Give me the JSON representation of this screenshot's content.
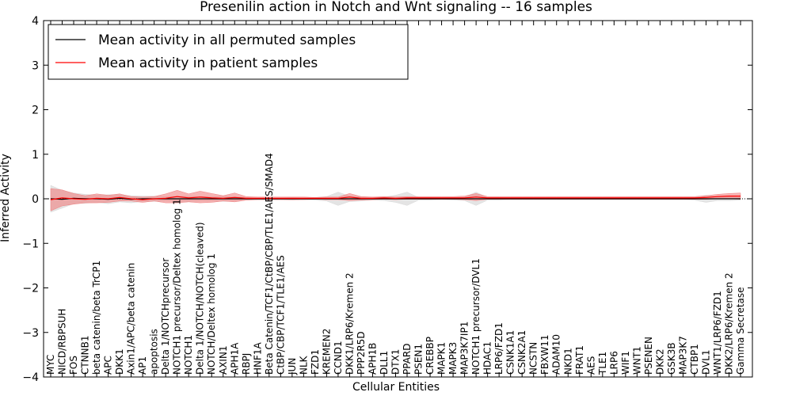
{
  "chart_data": {
    "type": "line",
    "title": "Presenilin action in Notch and Wnt signaling -- 16 samples",
    "xlabel": "Cellular Entities",
    "ylabel": "Inferred Activity",
    "ylim": [
      -4,
      4
    ],
    "yticks": [
      "−4",
      "−3",
      "−2",
      "−1",
      "0",
      "1",
      "2",
      "3",
      "4"
    ],
    "legend_position": "top-left",
    "categories": [
      "MYC",
      "NICD/RBPSUH",
      "FOS",
      "CTNNB1",
      "beta catenin/beta TrCP1",
      "APC",
      "DKK1",
      "Axin1/APC/beta catenin",
      "AP1",
      "apoptosis",
      "Delta 1/NOTCHprecursor",
      "NOTCH1 precursor/Deltex homolog 1",
      "NOTCH1",
      "Delta 1/NOTCH/NOTCH(cleaved)",
      "NOTCH/Deltex homolog 1",
      "AXIN1",
      "APH1A",
      "RBPJ",
      "HNF1A",
      "Beta Catenin/TCF1/CtBP/CBP/TLE1/AES/SMAD4",
      "CtBP/CBP/TCF1/TLE1/AES",
      "JUN",
      "NLK",
      "FZD1",
      "KREMEN2",
      "CCND1",
      "DKK1/LRP6/Kremen 2",
      "PPP2R5D",
      "APH1B",
      "DLL1",
      "DTX1",
      "PPARD",
      "PSEN1",
      "CREBBP",
      "MAPK1",
      "MAPK3",
      "MAP3K7IP1",
      "NOTCH1 precursor/DVL1",
      "HDAC1",
      "LRP6/FZD1",
      "CSNK1A1",
      "CSNK2A1",
      "NCSTN",
      "FBXW11",
      "ADAM10",
      "NKD1",
      "FRAT1",
      "AES",
      "TLE1",
      "LRP6",
      "WIF1",
      "WNT1",
      "PSENEN",
      "DKK2",
      "GSK3B",
      "MAP3K7",
      "CTBP1",
      "DVL1",
      "WNT1/LRP6/FZD1",
      "DKK2/LRP6/Kremen 2",
      "Gamma Secretase"
    ],
    "series": [
      {
        "name": "Mean activity in all permuted samples",
        "color": "#000000",
        "values": [
          0,
          -0.01,
          0.01,
          0,
          0,
          -0.01,
          0.01,
          -0.01,
          0,
          0,
          0,
          0,
          0,
          0,
          0,
          0,
          0,
          0,
          0,
          0,
          0,
          0,
          0,
          0,
          0,
          0,
          0,
          0,
          0,
          0,
          0,
          0,
          0,
          0,
          0,
          0,
          0,
          0,
          0,
          0,
          0,
          0,
          0,
          0,
          0,
          0,
          0,
          0,
          0,
          0,
          0,
          0,
          0,
          0,
          0,
          0,
          0,
          0,
          0,
          0,
          0
        ],
        "band_spread": [
          0.3,
          0.2,
          0.12,
          0.1,
          0.08,
          0.1,
          0.08,
          0.08,
          0.06,
          0.06,
          0.05,
          0.06,
          0.06,
          0.05,
          0.05,
          0.06,
          0.05,
          0.03,
          0.02,
          0.02,
          0.02,
          0.03,
          0.02,
          0.03,
          0.05,
          0.15,
          0.06,
          0.05,
          0.03,
          0.04,
          0.08,
          0.15,
          0.03,
          0.03,
          0.02,
          0.03,
          0.04,
          0.15,
          0.03,
          0.03,
          0.02,
          0.02,
          0.02,
          0.02,
          0.02,
          0.02,
          0.02,
          0.02,
          0.02,
          0.02,
          0.02,
          0.02,
          0.02,
          0.02,
          0.02,
          0.02,
          0.03,
          0.08,
          0.04,
          0.04,
          0.03
        ],
        "band_color": "#d8d8d8"
      },
      {
        "name": "Mean activity in patient samples",
        "color": "#ff0000",
        "values": [
          -0.02,
          0.02,
          0.0,
          -0.01,
          0.01,
          0.0,
          0.03,
          0.0,
          -0.02,
          0.0,
          0.01,
          0.05,
          0.02,
          0.04,
          0.02,
          0.01,
          0.03,
          0.01,
          0.01,
          0.01,
          0.01,
          0.01,
          0.01,
          0.01,
          0.01,
          0.01,
          0.04,
          0.01,
          0.01,
          0.02,
          0.01,
          0.02,
          0.02,
          0.02,
          0.02,
          0.02,
          0.02,
          0.04,
          0.02,
          0.02,
          0.02,
          0.02,
          0.02,
          0.02,
          0.02,
          0.02,
          0.02,
          0.02,
          0.02,
          0.02,
          0.02,
          0.02,
          0.02,
          0.02,
          0.02,
          0.02,
          0.02,
          0.03,
          0.05,
          0.06,
          0.06
        ],
        "band_spread": [
          0.25,
          0.18,
          0.12,
          0.08,
          0.1,
          0.08,
          0.08,
          0.05,
          0.06,
          0.05,
          0.1,
          0.14,
          0.09,
          0.13,
          0.1,
          0.06,
          0.1,
          0.04,
          0.03,
          0.03,
          0.03,
          0.03,
          0.03,
          0.02,
          0.03,
          0.03,
          0.08,
          0.04,
          0.03,
          0.03,
          0.03,
          0.03,
          0.03,
          0.03,
          0.03,
          0.03,
          0.04,
          0.08,
          0.03,
          0.03,
          0.03,
          0.03,
          0.03,
          0.03,
          0.03,
          0.03,
          0.03,
          0.03,
          0.03,
          0.03,
          0.03,
          0.03,
          0.03,
          0.03,
          0.03,
          0.03,
          0.03,
          0.04,
          0.05,
          0.06,
          0.07
        ],
        "band_color": "#f08080"
      }
    ]
  }
}
